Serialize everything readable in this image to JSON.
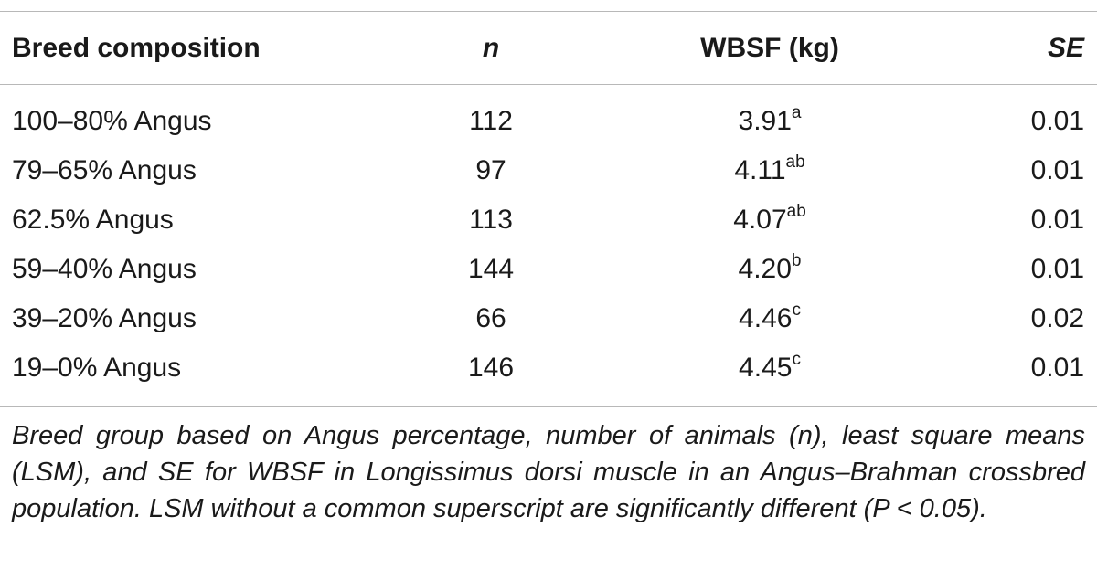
{
  "table": {
    "headers": {
      "breed": "Breed composition",
      "n": "n",
      "wbsf": "WBSF (kg)",
      "se": "SE"
    },
    "rows": [
      {
        "breed": "100–80% Angus",
        "n": "112",
        "wbsf": "3.91",
        "sup": "a",
        "se": "0.01"
      },
      {
        "breed": "79–65% Angus",
        "n": "97",
        "wbsf": "4.11",
        "sup": "ab",
        "se": "0.01"
      },
      {
        "breed": "62.5% Angus",
        "n": "113",
        "wbsf": "4.07",
        "sup": "ab",
        "se": "0.01"
      },
      {
        "breed": "59–40% Angus",
        "n": "144",
        "wbsf": "4.20",
        "sup": "b",
        "se": "0.01"
      },
      {
        "breed": "39–20% Angus",
        "n": "66",
        "wbsf": "4.46",
        "sup": "c",
        "se": "0.02"
      },
      {
        "breed": "19–0% Angus",
        "n": "146",
        "wbsf": "4.45",
        "sup": "c",
        "se": "0.01"
      }
    ]
  },
  "caption": "Breed group based on Angus percentage, number of animals (n), least square means (LSM), and SE for WBSF in Longissimus dorsi muscle in an Angus–Brahman crossbred population. LSM without a common superscript are significantly different (P < 0.05)."
}
